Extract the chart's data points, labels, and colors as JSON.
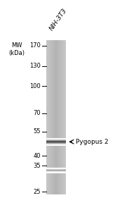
{
  "background_color": "#ffffff",
  "gel_bg_color": "#b8b8b8",
  "lane_label": "NIH-3T3",
  "lane_label_fontsize": 6.5,
  "lane_label_rotation": 55,
  "mw_label": "MW\n(kDa)",
  "mw_label_fontsize": 6.0,
  "markers": [
    {
      "kda": 170,
      "label": "170"
    },
    {
      "kda": 130,
      "label": "130"
    },
    {
      "kda": 100,
      "label": "100"
    },
    {
      "kda": 70,
      "label": "70"
    },
    {
      "kda": 55,
      "label": "55"
    },
    {
      "kda": 40,
      "label": "40"
    },
    {
      "kda": 35,
      "label": "35"
    },
    {
      "kda": 25,
      "label": "25"
    }
  ],
  "annotation_text": "Pygopus 2",
  "annotation_fontsize": 6.5,
  "marker_fontsize": 6.0
}
